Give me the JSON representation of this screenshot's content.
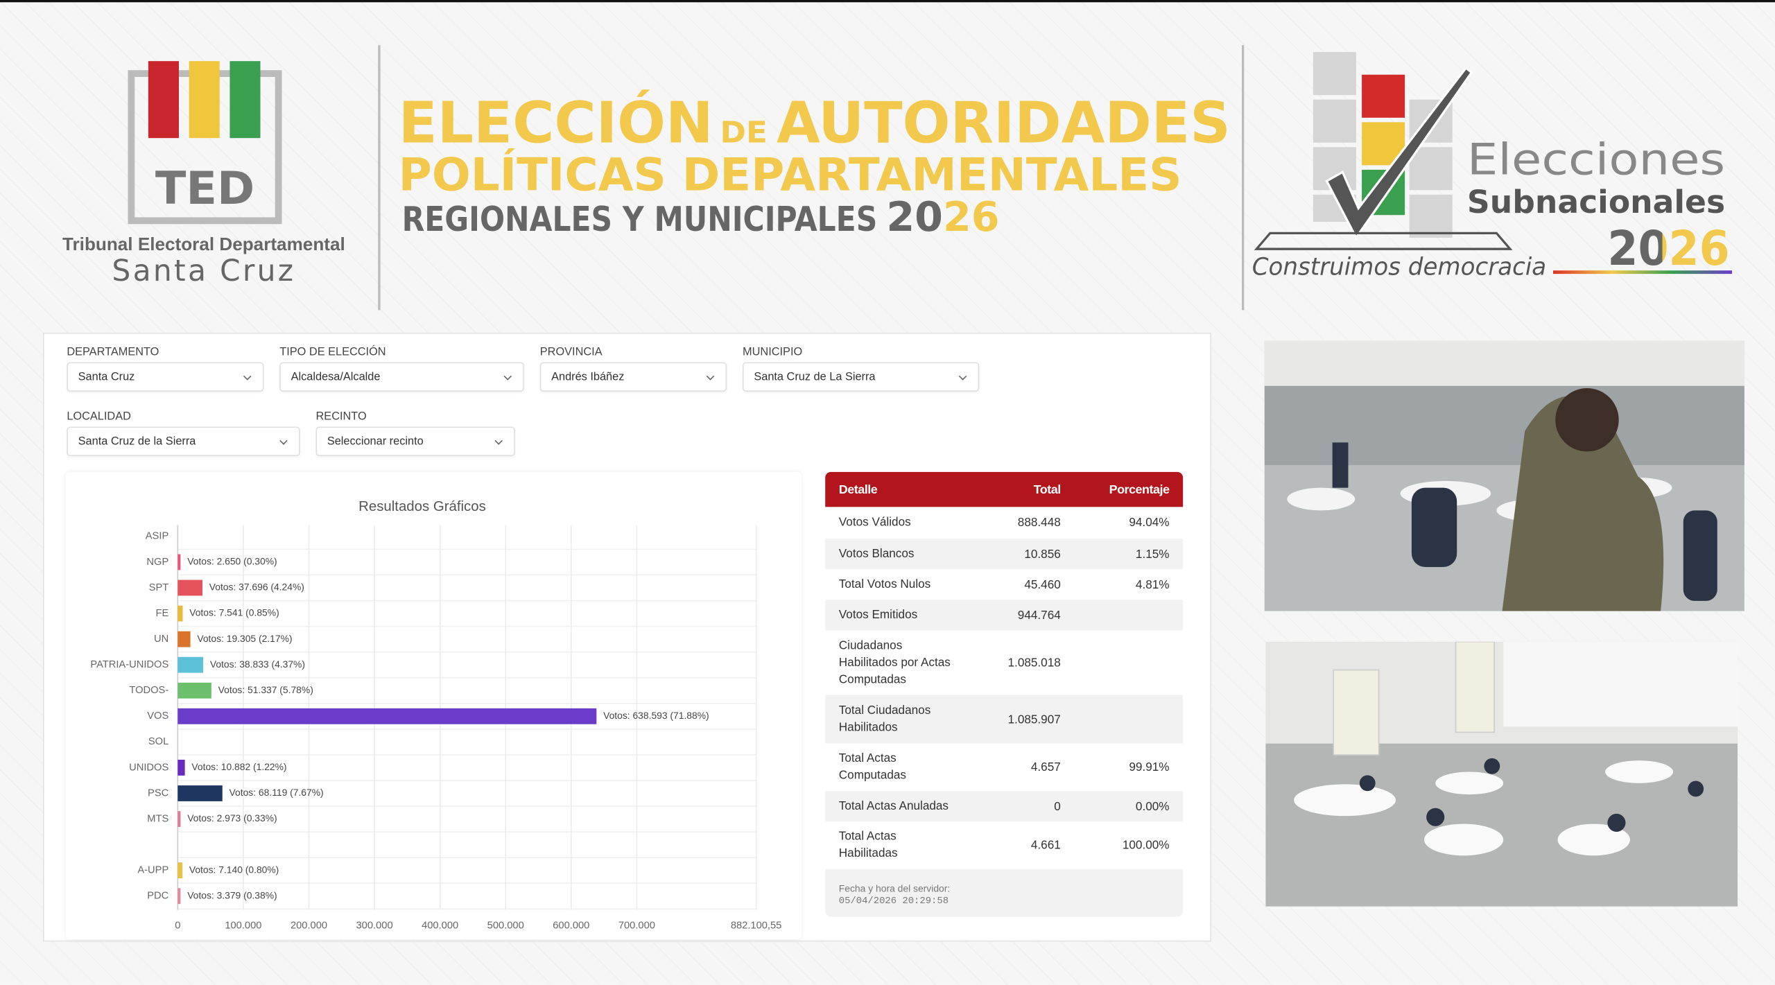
{
  "header": {
    "logo_left": {
      "acronym": "TED",
      "name": "Tribunal Electoral Departamental",
      "place": "Santa Cruz"
    },
    "title": {
      "word1": "ELECCIÓN",
      "connector": "DE",
      "word2": "AUTORIDADES",
      "line2": "POLÍTICAS DEPARTAMENTALES",
      "line3": "REGIONALES Y MUNICIPALES",
      "year": "2026"
    },
    "logo_right": {
      "line1": "Elecciones",
      "line2": "Subnacionales",
      "year": "2026",
      "slogan": "Construimos democracia"
    }
  },
  "filters": [
    {
      "label": "DEPARTAMENTO",
      "value": "Santa Cruz"
    },
    {
      "label": "TIPO DE ELECCIÓN",
      "value": "Alcaldesa/Alcalde"
    },
    {
      "label": "PROVINCIA",
      "value": "Andrés Ibáñez"
    },
    {
      "label": "MUNICIPIO",
      "value": "Santa Cruz de La Sierra"
    },
    {
      "label": "LOCALIDAD",
      "value": "Santa Cruz de la Sierra"
    },
    {
      "label": "RECINTO",
      "value": "Seleccionar recinto"
    }
  ],
  "chart_data": {
    "type": "bar",
    "orientation": "horizontal",
    "title": "Resultados Gráficos",
    "categories": [
      "ASIP",
      "NGP",
      "SPT",
      "FE",
      "UN",
      "PATRIA-UNIDOS",
      "TODOS-",
      "VOS",
      "SOL",
      "UNIDOS",
      "PSC",
      "MTS",
      null,
      "A-UPP",
      "PDC"
    ],
    "values": [
      null,
      2650,
      37696,
      7541,
      19305,
      38833,
      51337,
      638593,
      null,
      10882,
      68119,
      2973,
      null,
      7140,
      3379
    ],
    "value_labels": [
      null,
      "Votos: 2.650 (0.30%)",
      "Votos: 37.696 (4.24%)",
      "Votos: 7.541 (0.85%)",
      "Votos: 19.305 (2.17%)",
      "Votos: 38.833 (4.37%)",
      "Votos: 51.337 (5.78%)",
      "Votos: 638.593 (71.88%)",
      null,
      "Votos: 10.882 (1.22%)",
      "Votos: 68.119 (7.67%)",
      "Votos: 2.973 (0.33%)",
      null,
      "Votos: 7.140 (0.80%)",
      "Votos: 3.379 (0.38%)"
    ],
    "colors": [
      null,
      "#e8577b",
      "#e5545c",
      "#e8b93a",
      "#d9742a",
      "#5bc0d8",
      "#6cbf6b",
      "#6a3cc9",
      null,
      "#6a2bc0",
      "#1f3760",
      "#e07b9a",
      null,
      "#e8c23c",
      "#e08aa0"
    ],
    "xlim": [
      0,
      882100.55
    ],
    "xticks": [
      0,
      {
        "value": 100000,
        "label": "100.000"
      },
      {
        "value": 200000,
        "label": "200.000"
      },
      {
        "value": 300000,
        "label": "300.000"
      },
      {
        "value": 400000,
        "label": "400.000"
      },
      {
        "value": 500000,
        "label": "500.000"
      },
      {
        "value": 600000,
        "label": "600.000"
      },
      {
        "value": 700000,
        "label": "700.000"
      },
      {
        "value": 882100.55,
        "label": "882.100,55"
      }
    ],
    "grid": true
  },
  "table": {
    "columns": [
      "Detalle",
      "Total",
      "Porcentaje"
    ],
    "rows": [
      [
        "Votos Válidos",
        "888.448",
        "94.04%"
      ],
      [
        "Votos Blancos",
        "10.856",
        "1.15%"
      ],
      [
        "Total Votos Nulos",
        "45.460",
        "4.81%"
      ],
      [
        "Votos Emitidos",
        "944.764",
        null
      ],
      [
        "Ciudadanos Habilitados por Actas Computadas",
        "1.085.018",
        null
      ],
      [
        "Total Ciudadanos Habilitados",
        "1.085.907",
        null
      ],
      [
        "Total Actas Computadas",
        "4.657",
        "99.91%"
      ],
      [
        "Total Actas Anuladas",
        "0",
        "0.00%"
      ],
      [
        "Total Actas Habilitadas",
        "4.661",
        "100.00%"
      ]
    ],
    "footer": {
      "label": "Fecha y hora del servidor:",
      "timestamp": "05/04/2026 20:29:58"
    }
  }
}
